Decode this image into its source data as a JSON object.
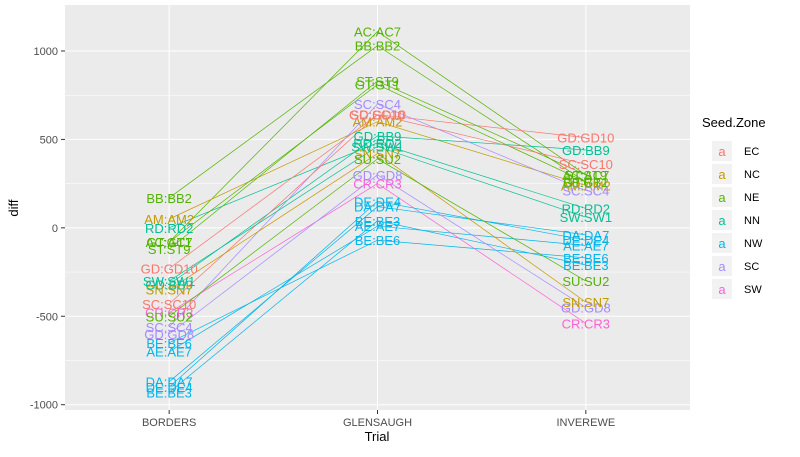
{
  "chart_data": {
    "type": "line",
    "title": "",
    "xlabel": "Trial",
    "ylabel": "diff",
    "categories": [
      "BORDERS",
      "GLENSAUGH",
      "INVEREWE"
    ],
    "ylim": [
      -1030,
      1260
    ],
    "yticks": [
      -1000,
      -500,
      0,
      500,
      1000
    ],
    "grid": true,
    "legend": {
      "title": "Seed.Zone",
      "placement": "right",
      "key_glyph": "a",
      "entries": [
        {
          "name": "EC",
          "color": "#F8766D"
        },
        {
          "name": "NC",
          "color": "#C49A00"
        },
        {
          "name": "NE",
          "color": "#53B400"
        },
        {
          "name": "NN",
          "color": "#00C094"
        },
        {
          "name": "NW",
          "color": "#00B6EB"
        },
        {
          "name": "SC",
          "color": "#A58AFF"
        },
        {
          "name": "SW",
          "color": "#FB61D7"
        }
      ]
    },
    "series": [
      {
        "name": "BB:BB2",
        "zone": "NE",
        "values": [
          170,
          1030,
          260
        ]
      },
      {
        "name": "AC:AC7",
        "zone": "NE",
        "values": [
          -80,
          1110,
          300
        ]
      },
      {
        "name": "AM:AM2",
        "zone": "NC",
        "values": [
          50,
          600,
          240
        ]
      },
      {
        "name": "RD:RD2",
        "zone": "NN",
        "values": [
          0,
          480,
          110
        ]
      },
      {
        "name": "GD:GD10",
        "zone": "EC",
        "values": [
          -230,
          640,
          510
        ]
      },
      {
        "name": "GD:BB9",
        "zone": "NN",
        "values": [
          -320,
          520,
          440
        ]
      },
      {
        "name": "ST:ST9",
        "zone": "NE",
        "values": [
          -120,
          830,
          300
        ]
      },
      {
        "name": "GT:GT1",
        "zone": "NE",
        "values": [
          -80,
          810,
          260
        ]
      },
      {
        "name": "SC:SC4",
        "zone": "SC",
        "values": [
          -560,
          700,
          210
        ]
      },
      {
        "name": "SC:SC10",
        "zone": "EC",
        "values": [
          -430,
          640,
          360
        ]
      },
      {
        "name": "BE:BE6",
        "zone": "NW",
        "values": [
          -650,
          -70,
          -170
        ]
      },
      {
        "name": "AE:AE7",
        "zone": "NW",
        "values": [
          -700,
          10,
          -100
        ]
      },
      {
        "name": "CR:CR3",
        "zone": "SW",
        "values": [
          -480,
          250,
          -540
        ]
      },
      {
        "name": "BE:BE3",
        "zone": "NW",
        "values": [
          -930,
          40,
          -210
        ]
      },
      {
        "name": "DA:DA7",
        "zone": "NW",
        "values": [
          -870,
          120,
          -40
        ]
      },
      {
        "name": "DE:DE4",
        "zone": "NW",
        "values": [
          -900,
          150,
          -70
        ]
      },
      {
        "name": "GD:GD8",
        "zone": "SC",
        "values": [
          -600,
          300,
          -450
        ]
      },
      {
        "name": "SN:SN7",
        "zone": "NC",
        "values": [
          -350,
          420,
          -420
        ]
      },
      {
        "name": "SU:SU2",
        "zone": "NE",
        "values": [
          -500,
          390,
          -300
        ]
      },
      {
        "name": "SW:SW1",
        "zone": "NN",
        "values": [
          -300,
          460,
          60
        ]
      }
    ]
  }
}
